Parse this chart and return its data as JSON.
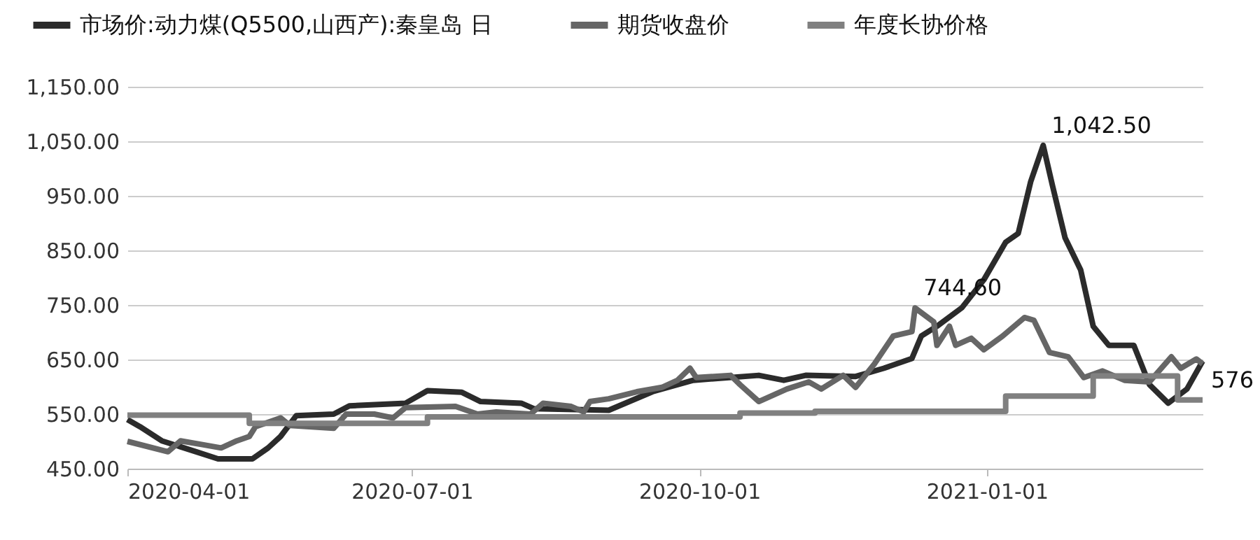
{
  "chart_data": {
    "type": "line",
    "legend": "top",
    "grid": "y",
    "line_style": "solid",
    "marker": "none",
    "xlim": [
      "2020-04-01",
      "2021-03-11"
    ],
    "xticks": [
      "2020-04-01",
      "2020-07-01",
      "2020-10-01",
      "2021-01-01"
    ],
    "ylim": [
      450,
      1150
    ],
    "yticks": [
      {
        "value": 450,
        "label": "450.00"
      },
      {
        "value": 550,
        "label": "550.00"
      },
      {
        "value": 650,
        "label": "650.00"
      },
      {
        "value": 750,
        "label": "750.00"
      },
      {
        "value": 850,
        "label": "850.00"
      },
      {
        "value": 950,
        "label": "950.00"
      },
      {
        "value": 1050,
        "label": "1,050.00"
      },
      {
        "value": 1150,
        "label": "1,150.00"
      }
    ],
    "series": [
      {
        "name": "市场价:动力煤(Q5500,山西产):秦皇岛 日",
        "color": "#2b2b2b",
        "x": [
          "2020-04-01",
          "2020-04-05",
          "2020-04-12",
          "2020-04-23",
          "2020-04-30",
          "2020-05-11",
          "2020-05-16",
          "2020-05-20",
          "2020-05-25",
          "2020-06-06",
          "2020-06-11",
          "2020-06-29",
          "2020-07-06",
          "2020-07-17",
          "2020-07-23",
          "2020-08-05",
          "2020-08-09",
          "2020-09-02",
          "2020-09-16",
          "2020-09-29",
          "2020-10-20",
          "2020-10-28",
          "2020-11-04",
          "2020-11-20",
          "2020-11-29",
          "2020-12-08",
          "2020-12-11",
          "2020-12-16",
          "2020-12-24",
          "2020-12-31",
          "2021-01-07",
          "2021-01-11",
          "2021-01-15",
          "2021-01-19",
          "2021-01-22",
          "2021-01-26",
          "2021-01-31",
          "2021-02-04",
          "2021-02-09",
          "2021-02-17",
          "2021-02-22",
          "2021-02-28",
          "2021-03-06",
          "2021-03-11"
        ],
        "values": [
          540,
          527,
          501,
          481,
          468,
          468,
          488,
          509,
          547,
          550,
          565,
          570,
          593,
          590,
          573,
          570,
          560,
          557,
          591,
          612,
          621,
          612,
          621,
          619,
          634,
          652,
          693,
          711,
          745,
          796,
          865,
          881,
          976,
          1042.5,
          968,
          873,
          814,
          711,
          676,
          676,
          604,
          570,
          596,
          647
        ]
      },
      {
        "name": "期货收盘价",
        "color": "#666666",
        "x": [
          "2020-04-01",
          "2020-04-14",
          "2020-04-18",
          "2020-04-25",
          "2020-05-01",
          "2020-05-06",
          "2020-05-10",
          "2020-05-12",
          "2020-05-20",
          "2020-05-23",
          "2020-06-06",
          "2020-06-10",
          "2020-06-19",
          "2020-06-25",
          "2020-06-29",
          "2020-07-15",
          "2020-07-22",
          "2020-07-28",
          "2020-08-08",
          "2020-08-12",
          "2020-08-21",
          "2020-08-25",
          "2020-08-27",
          "2020-09-02",
          "2020-09-11",
          "2020-09-19",
          "2020-09-24",
          "2020-09-28",
          "2020-09-30",
          "2020-10-11",
          "2020-10-14",
          "2020-10-20",
          "2020-10-29",
          "2020-11-05",
          "2020-11-09",
          "2020-11-16",
          "2020-11-20",
          "2020-11-26",
          "2020-12-02",
          "2020-12-08",
          "2020-12-09",
          "2020-12-15",
          "2020-12-16",
          "2020-12-20",
          "2020-12-22",
          "2020-12-27",
          "2020-12-31",
          "2021-01-06",
          "2021-01-13",
          "2021-01-16",
          "2021-01-21",
          "2021-01-27",
          "2021-02-01",
          "2021-02-07",
          "2021-02-14",
          "2021-02-22",
          "2021-03-01",
          "2021-03-04",
          "2021-03-09",
          "2021-03-11"
        ],
        "values": [
          500,
          481,
          501,
          494,
          488,
          501,
          509,
          527,
          543,
          529,
          524,
          550,
          550,
          543,
          562,
          564,
          550,
          554,
          550,
          570,
          564,
          554,
          573,
          578,
          591,
          599,
          612,
          634,
          617,
          621,
          604,
          573,
          596,
          609,
          596,
          621,
          599,
          642,
          693,
          701,
          744.6,
          719,
          676,
          711,
          676,
          689,
          668,
          693,
          727,
          722,
          663,
          655,
          617,
          629,
          612,
          609,
          655,
          634,
          651,
          642
        ]
      },
      {
        "name": "年度长协价格",
        "color": "#808080",
        "type": "step",
        "x": [
          "2020-04-01",
          "2020-05-10",
          "2020-07-06",
          "2020-10-14",
          "2020-11-07",
          "2021-01-07",
          "2021-02-04",
          "2021-03-03",
          "2021-03-11"
        ],
        "values": [
          548,
          533,
          545,
          552,
          555,
          583,
          620,
          576,
          576
        ]
      }
    ],
    "annotations": [
      {
        "text": "1,042.50",
        "x": "2021-01-19",
        "y": 1042.5
      },
      {
        "text": "744.60",
        "x": "2020-12-09",
        "y": 744.6
      },
      {
        "text": "576",
        "x": "2021-03-11",
        "y": 576
      }
    ]
  }
}
